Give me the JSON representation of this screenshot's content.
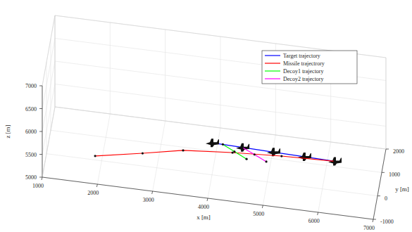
{
  "chart_data": {
    "type": "line3d",
    "xlabel": "x [m]",
    "ylabel": "y [m]",
    "zlabel": "z [m]",
    "xlim": [
      1000,
      7000
    ],
    "ylim": [
      -1000,
      2000
    ],
    "zlim": [
      5000,
      7000
    ],
    "xticks": [
      1000,
      2000,
      3000,
      4000,
      5000,
      6000,
      7000
    ],
    "yticks": [
      -1000,
      0,
      1000,
      2000
    ],
    "zticks": [
      5000,
      5500,
      6000,
      6500,
      7000
    ],
    "grid": true,
    "legend": "upper right",
    "series": [
      {
        "name": "Target trajectory",
        "color": "#0000ff",
        "marker": "plane",
        "x": [
          4000,
          4560,
          5130,
          5700,
          6260
        ],
        "y": [
          0,
          -125,
          -250,
          -375,
          -500
        ],
        "z": [
          5700,
          5750,
          5800,
          5850,
          5900
        ]
      },
      {
        "name": "Missile trajectrory",
        "color": "#ff0000",
        "marker": "dot",
        "x": [
          1920,
          2780,
          3515,
          4410,
          5300,
          6260
        ],
        "y": [
          -500,
          -500,
          -500,
          -500,
          -500,
          -500
        ],
        "z": [
          5350,
          5540,
          5716,
          5806,
          5866,
          5900
        ]
      },
      {
        "name": "Decoy1 trajectory",
        "color": "#00ff00",
        "marker": "dot",
        "x": [
          4200,
          4420,
          4650
        ],
        "y": [
          -45,
          -170,
          -300
        ],
        "z": [
          5720,
          5660,
          5600
        ]
      },
      {
        "name": "Decoy2 trajectory",
        "color": "#ff00ff",
        "marker": "dot",
        "x": [
          4560,
          4790,
          5015
        ],
        "y": [
          -125,
          -260,
          -400
        ],
        "z": [
          5750,
          5700,
          5650
        ]
      }
    ]
  }
}
